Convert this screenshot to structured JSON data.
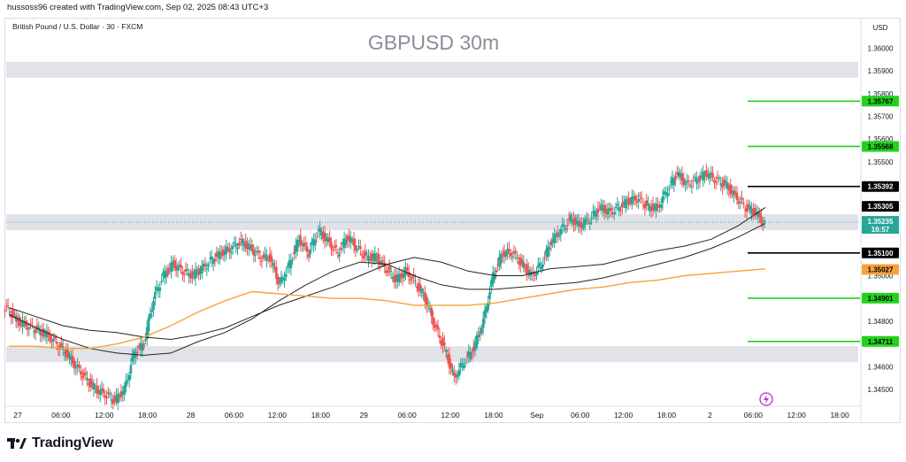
{
  "header": {
    "credit": "hussoss96 created with TradingView.com, Sep 02, 2025 08:43 UTC+3"
  },
  "footer": {
    "brand": "TradingView"
  },
  "colors": {
    "up": "#26a69a",
    "down": "#ef5350",
    "support_green": "#22d21c",
    "black_level": "#000000",
    "orange": "#f7a23b",
    "zone": "#e1e3e8",
    "ma_line": "#222222"
  },
  "chart_data": {
    "type": "candlestick",
    "symbol_title": "British Pound / U.S. Dollar · 30 · FXCM",
    "title": "GBPUSD 30m",
    "currency": "USD",
    "ylim": [
      1.3443,
      1.3613
    ],
    "y_ticks": [
      "1.36000",
      "1.35900",
      "1.35800",
      "1.35700",
      "1.35600",
      "1.35500",
      "1.35000",
      "1.34800",
      "1.34600",
      "1.34500"
    ],
    "x_ticks": [
      "27",
      "06:00",
      "12:00",
      "18:00",
      "28",
      "06:00",
      "12:00",
      "18:00",
      "29",
      "06:00",
      "12:00",
      "18:00",
      "Sep",
      "06:00",
      "12:00",
      "18:00",
      "2",
      "06:00",
      "12:00",
      "18:00"
    ],
    "last_price": {
      "value": "1.35235",
      "countdown": "16:57"
    },
    "zones": [
      {
        "from": 1.3587,
        "to": 1.3594
      },
      {
        "from": 1.352,
        "to": 1.3527
      },
      {
        "from": 1.3462,
        "to": 1.3469
      }
    ],
    "levels": [
      {
        "value": 1.35767,
        "label": "1.35767",
        "kind": "green"
      },
      {
        "value": 1.35568,
        "label": "1.35568",
        "kind": "green"
      },
      {
        "value": 1.35392,
        "label": "1.35392",
        "kind": "black"
      },
      {
        "value": 1.35305,
        "label": "1.35305",
        "kind": "black-tag"
      },
      {
        "value": 1.35228,
        "label": "1.35228",
        "kind": "black-tag"
      },
      {
        "value": 1.351,
        "label": "1.35100",
        "kind": "black"
      },
      {
        "value": 1.35027,
        "label": "1.35027",
        "kind": "orange"
      },
      {
        "value": 1.34901,
        "label": "1.34901",
        "kind": "green"
      },
      {
        "value": 1.34711,
        "label": "1.34711",
        "kind": "green"
      }
    ],
    "series": [
      {
        "name": "",
        "kind": "close",
        "values": [
          1.3485,
          1.348,
          1.3478,
          1.3476,
          1.3474,
          1.347,
          1.3466,
          1.346,
          1.3455,
          1.345,
          1.3448,
          1.3445,
          1.345,
          1.3466,
          1.347,
          1.349,
          1.35,
          1.3505,
          1.3502,
          1.35,
          1.3503,
          1.3507,
          1.351,
          1.3512,
          1.3515,
          1.3512,
          1.3508,
          1.3508,
          1.3496,
          1.3505,
          1.3516,
          1.351,
          1.352,
          1.3515,
          1.351,
          1.3517,
          1.3512,
          1.3508,
          1.3508,
          1.3503,
          1.3498,
          1.3502,
          1.3497,
          1.349,
          1.3478,
          1.3468,
          1.3455,
          1.3462,
          1.3468,
          1.348,
          1.35,
          1.351,
          1.351,
          1.3505,
          1.35,
          1.3505,
          1.3515,
          1.352,
          1.3525,
          1.3522,
          1.3525,
          1.353,
          1.3528,
          1.353,
          1.3533,
          1.3534,
          1.353,
          1.353,
          1.3538,
          1.3545,
          1.354,
          1.3542,
          1.3545,
          1.3542,
          1.354,
          1.3535,
          1.353,
          1.3528,
          1.3523
        ]
      },
      {
        "name": "",
        "kind": "upper-band",
        "values": [
          1.3486,
          1.3482,
          1.3478,
          1.3476,
          1.3475,
          1.3473,
          1.3472,
          1.3474,
          1.3477,
          1.3482,
          1.3487,
          1.3491,
          1.3495,
          1.35,
          1.3505,
          1.3508,
          1.3506,
          1.3502,
          1.35,
          1.35,
          1.3503,
          1.3504,
          1.3505,
          1.3508,
          1.3511,
          1.3513,
          1.3516,
          1.3522,
          1.353
        ]
      },
      {
        "name": "",
        "kind": "lower-band",
        "values": [
          1.3483,
          1.3477,
          1.3472,
          1.3468,
          1.3466,
          1.3465,
          1.3466,
          1.3471,
          1.3475,
          1.3481,
          1.3489,
          1.3496,
          1.3502,
          1.3506,
          1.3505,
          1.35,
          1.3496,
          1.3494,
          1.3494,
          1.3495,
          1.3496,
          1.3497,
          1.3499,
          1.3502,
          1.3505,
          1.3508,
          1.3512,
          1.3517,
          1.3523
        ]
      },
      {
        "name": "",
        "kind": "orange-ma",
        "values": [
          1.3469,
          1.3469,
          1.3468,
          1.3468,
          1.347,
          1.3473,
          1.3478,
          1.3484,
          1.3489,
          1.3493,
          1.3492,
          1.3491,
          1.349,
          1.349,
          1.3489,
          1.3487,
          1.3487,
          1.3487,
          1.3488,
          1.349,
          1.3492,
          1.3494,
          1.3495,
          1.3497,
          1.3498,
          1.35,
          1.3501,
          1.3502,
          1.3503
        ]
      }
    ]
  }
}
